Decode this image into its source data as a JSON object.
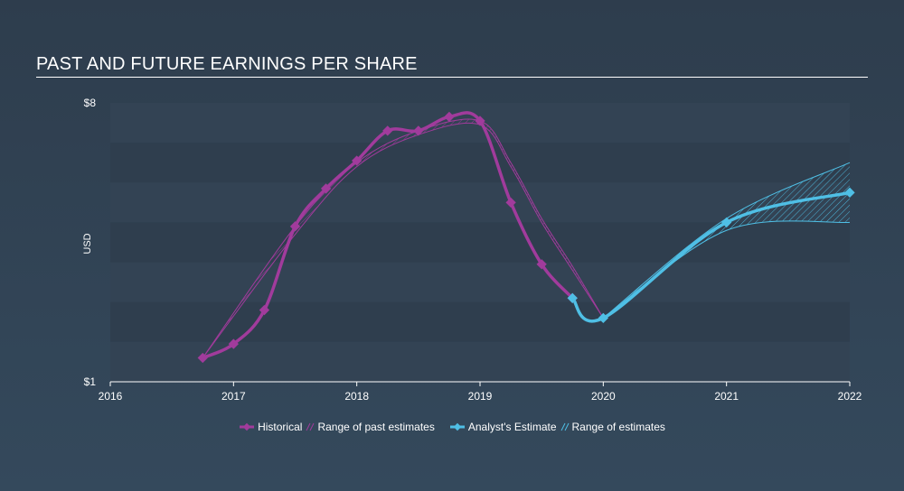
{
  "chart_data": {
    "type": "line",
    "title": "PAST AND FUTURE EARNINGS PER SHARE",
    "ylabel": "USD",
    "y_tick_labels": [
      "$1",
      "$8"
    ],
    "ylim": [
      1,
      8
    ],
    "xlim": [
      2016,
      2022
    ],
    "x_ticks": [
      "2016",
      "2017",
      "2018",
      "2019",
      "2020",
      "2021",
      "2022"
    ],
    "series": [
      {
        "name": "Historical",
        "color": "#a13b9c",
        "x": [
          2016.75,
          2017.0,
          2017.25,
          2017.5,
          2017.75,
          2018.0,
          2018.25,
          2018.5,
          2018.75,
          2019.0,
          2019.25,
          2019.5,
          2019.75
        ],
        "y": [
          1.6,
          1.95,
          2.8,
          4.9,
          5.85,
          6.55,
          7.3,
          7.3,
          7.65,
          7.55,
          5.5,
          3.95,
          3.1
        ]
      },
      {
        "name": "Analyst's Estimate",
        "color": "#4fbfe5",
        "x": [
          2019.75,
          2020.0,
          2021.0,
          2022.0
        ],
        "y": [
          3.1,
          2.6,
          5.0,
          5.75
        ]
      }
    ],
    "past_estimate_range": {
      "name": "Range of past estimates",
      "x": [
        2016.75,
        2017.5,
        2018.0,
        2018.5,
        2019.0,
        2019.25,
        2019.5,
        2019.75,
        2020.0
      ],
      "low": [
        1.6,
        4.7,
        6.4,
        7.2,
        7.45,
        6.4,
        5.0,
        3.8,
        2.6
      ],
      "high": [
        1.6,
        4.9,
        6.5,
        7.3,
        7.55,
        6.5,
        5.1,
        3.9,
        2.6
      ]
    },
    "estimate_range": {
      "name": "Range of estimates",
      "x": [
        2020.0,
        2021.0,
        2022.0
      ],
      "low": [
        2.6,
        4.8,
        5.0
      ],
      "high": [
        2.6,
        5.1,
        6.5
      ]
    },
    "legend": {
      "position": "bottom-center",
      "items": [
        "Historical",
        "Range of past estimates",
        "Analyst's Estimate",
        "Range of estimates"
      ]
    },
    "grid": true
  }
}
